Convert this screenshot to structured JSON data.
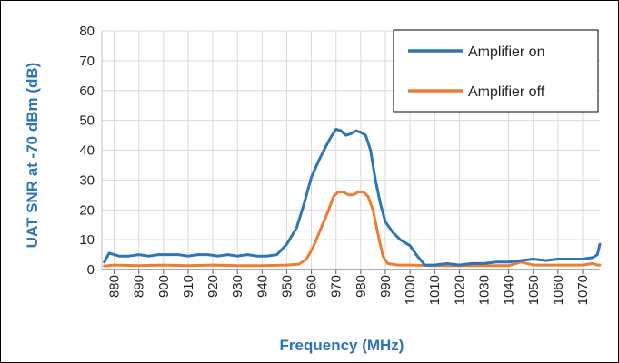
{
  "chart_data": {
    "type": "line",
    "xlabel": "Frequency (MHz)",
    "ylabel": "UAT SNR at -70 dBm (dB)",
    "title": "",
    "xlim": [
      875,
      1077
    ],
    "ylim": [
      0,
      80
    ],
    "yticks": [
      0,
      10,
      20,
      30,
      40,
      50,
      60,
      70,
      80
    ],
    "xticks": [
      880,
      890,
      900,
      910,
      920,
      930,
      940,
      950,
      960,
      970,
      980,
      990,
      1000,
      1010,
      1020,
      1030,
      1040,
      1050,
      1060,
      1070
    ],
    "grid": true,
    "legend_position": "top-right",
    "axis_title_color": "#2e75b6",
    "series": [
      {
        "name": "Amplifier on",
        "color": "#2e75b6",
        "x": [
          876,
          878,
          882,
          886,
          890,
          894,
          898,
          902,
          906,
          910,
          914,
          918,
          922,
          926,
          930,
          934,
          938,
          942,
          946,
          950,
          954,
          957,
          960,
          963,
          966,
          968,
          970,
          972,
          974,
          976,
          978,
          980,
          982,
          984,
          986,
          988,
          990,
          993,
          996,
          1000,
          1003,
          1006,
          1010,
          1015,
          1020,
          1025,
          1030,
          1035,
          1040,
          1045,
          1050,
          1055,
          1060,
          1065,
          1070,
          1074,
          1076,
          1077
        ],
        "y": [
          2.5,
          5.5,
          4.5,
          4.5,
          5.0,
          4.5,
          5.0,
          5.0,
          5.0,
          4.5,
          5.0,
          5.0,
          4.5,
          5.0,
          4.5,
          5.0,
          4.5,
          4.5,
          5.0,
          8.5,
          14.0,
          22.0,
          31.0,
          36.5,
          41.5,
          44.5,
          47.0,
          46.5,
          45.0,
          45.5,
          46.5,
          46.0,
          45.0,
          40.0,
          30.0,
          22.0,
          16.0,
          12.5,
          10.0,
          8.0,
          4.5,
          1.5,
          1.5,
          2.0,
          1.5,
          2.0,
          2.0,
          2.5,
          2.5,
          3.0,
          3.5,
          3.0,
          3.5,
          3.5,
          3.5,
          4.0,
          5.0,
          8.5
        ]
      },
      {
        "name": "Amplifier off",
        "color": "#ed7d31",
        "x": [
          876,
          880,
          890,
          900,
          910,
          920,
          930,
          940,
          950,
          955,
          958,
          961,
          964,
          967,
          969,
          971,
          973,
          975,
          977,
          979,
          981,
          983,
          985,
          987,
          989,
          991,
          995,
          1000,
          1010,
          1020,
          1030,
          1040,
          1045,
          1050,
          1060,
          1070,
          1074,
          1076,
          1077
        ],
        "y": [
          1.2,
          1.5,
          1.3,
          1.5,
          1.3,
          1.5,
          1.3,
          1.3,
          1.5,
          1.8,
          3.5,
          8.0,
          14.0,
          20.0,
          24.5,
          26.0,
          26.0,
          25.0,
          25.0,
          26.0,
          26.0,
          24.5,
          20.0,
          12.0,
          4.5,
          2.0,
          1.5,
          1.5,
          1.3,
          1.3,
          1.3,
          1.3,
          2.5,
          1.5,
          1.5,
          1.5,
          2.0,
          1.5,
          1.5
        ]
      }
    ]
  }
}
